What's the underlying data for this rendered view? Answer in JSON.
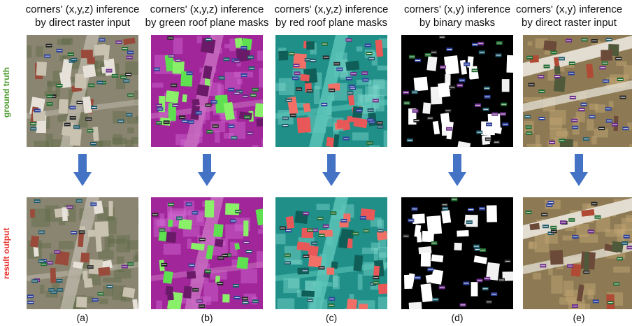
{
  "row_labels": {
    "top": "ground truth",
    "bottom": "result output",
    "top_color": "#4a9a2a",
    "bottom_color": "#e8332e"
  },
  "columns": [
    {
      "title_line1": "corners' (x,y,z) inference",
      "title_line2": "by direct raster input",
      "caption": "(a)",
      "style": "rgb"
    },
    {
      "title_line1": "corners' (x,y,z) inference",
      "title_line2": "by green roof plane masks",
      "caption": "(b)",
      "style": "magenta"
    },
    {
      "title_line1": "corners' (x,y,z) inference",
      "title_line2": "by red roof plane masks",
      "caption": "(c)",
      "style": "teal"
    },
    {
      "title_line1": "corners' (x,y) inference",
      "title_line2": "by binary masks",
      "caption": "(d)",
      "style": "binary"
    },
    {
      "title_line1": "corners' (x,y) inference",
      "title_line2": "by direct raster input",
      "caption": "(e)",
      "style": "rgb2"
    }
  ],
  "arrow_color": "#4472c4"
}
